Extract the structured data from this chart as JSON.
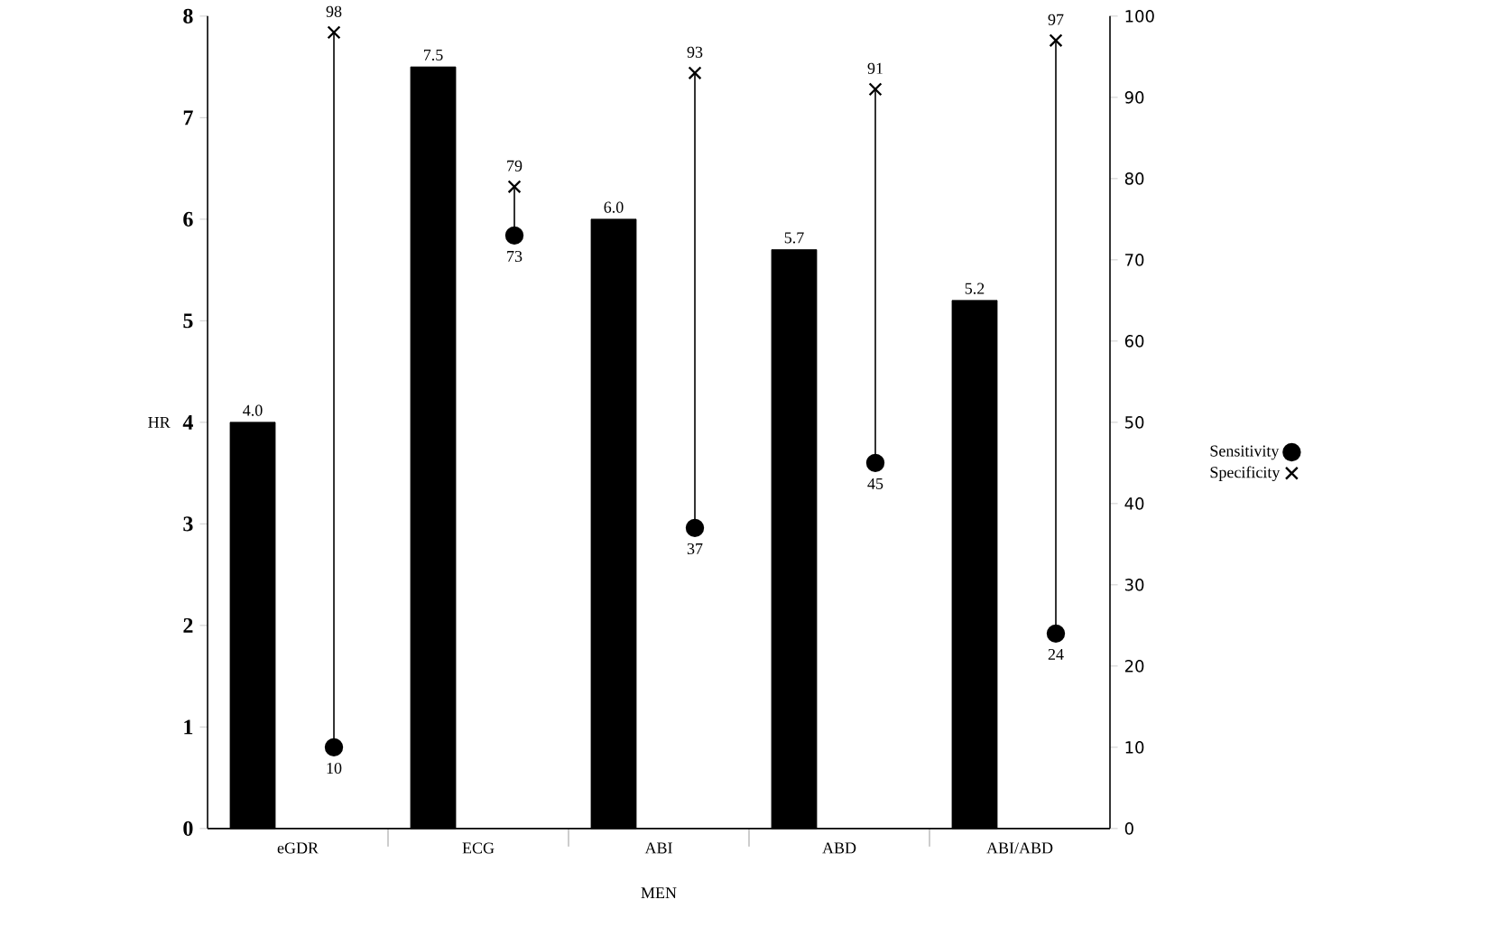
{
  "chart_data": {
    "type": "bar",
    "xlabel": "MEN",
    "ylabel": "HR",
    "categories": [
      "eGDR",
      "ECG",
      "ABI",
      "ABD",
      "ABI/ABD"
    ],
    "ylim": [
      0,
      8
    ],
    "yticks": [
      0,
      1,
      2,
      3,
      4,
      5,
      6,
      7,
      8
    ],
    "y2lim": [
      0,
      100
    ],
    "y2ticks": [
      0,
      10,
      20,
      30,
      40,
      50,
      60,
      70,
      80,
      90,
      100
    ],
    "legend": "right",
    "grid": false,
    "series": [
      {
        "color": "#000000",
        "values": [
          4.0,
          7.5,
          6.0,
          5.7,
          5.2
        ],
        "value_labels": [
          "4.0",
          "7.5",
          "6.0",
          "5.7",
          "5.2"
        ]
      },
      {
        "type": "scatter",
        "name": "Sensitivity",
        "axis": "y2",
        "marker": "circle",
        "color": "#000000",
        "values": [
          10,
          73,
          37,
          45,
          24
        ],
        "value_labels": [
          "10",
          "73",
          "37",
          "45",
          "24"
        ]
      },
      {
        "type": "scatter",
        "name": "Specificity",
        "axis": "y2",
        "marker": "cross",
        "color": "#000000",
        "values": [
          98,
          79,
          93,
          91,
          97
        ],
        "value_labels": [
          "98",
          "79",
          "93",
          "91",
          "97"
        ]
      }
    ]
  }
}
